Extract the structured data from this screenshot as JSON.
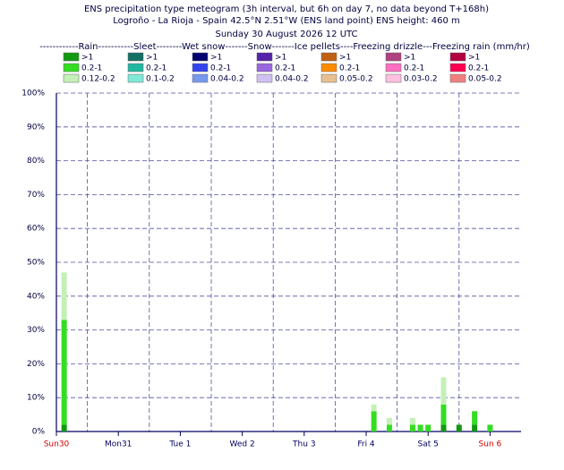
{
  "chart_data": {
    "type": "stacked-bar",
    "title": "ENS precipitation type meteogram (3h interval, but 6h on day 7, no data beyond T+168h)",
    "subtitle": "Logroño - La Rioja - Spain 42.5°N 2.51°W (ENS land point) ENS height: 460 m",
    "date_line": "Sunday 30 August 2026 12 UTC",
    "legend_header": "------------Rain-----------Sleet--------Wet snow-------Snow-------Ice pellets----Freezing drizzle---Freezing rain (mm/hr)",
    "x": [
      3,
      123,
      129,
      138,
      141,
      144,
      150,
      156,
      162,
      168
    ],
    "series": [
      {
        "name": ">1",
        "color": "#119911",
        "values": [
          2,
          null,
          null,
          null,
          null,
          null,
          2,
          2,
          2,
          null
        ]
      },
      {
        "name": "0.2-1",
        "color": "#33dd22",
        "values": [
          31,
          6,
          2,
          2,
          2,
          2,
          6,
          null,
          4,
          2
        ]
      },
      {
        "name": "0.12-0.2",
        "color": "#c4f0b8",
        "values": [
          14,
          2,
          2,
          2,
          null,
          null,
          8,
          null,
          null,
          null
        ]
      }
    ],
    "other_types": [
      [
        {
          "name": ">1",
          "color": "#137066"
        },
        {
          "name": "0.2-1",
          "color": "#22b8a0"
        },
        {
          "name": "0.1-0.2",
          "color": "#80e8d8"
        }
      ],
      [
        {
          "name": ">1",
          "color": "#000070"
        },
        {
          "name": "0.2-1",
          "color": "#3344ee"
        },
        {
          "name": "0.04-0.2",
          "color": "#7799ee"
        }
      ],
      [
        {
          "name": ">1",
          "color": "#5522aa"
        },
        {
          "name": "0.2-1",
          "color": "#9966dd"
        },
        {
          "name": "0.04-0.2",
          "color": "#d0c0f0"
        }
      ],
      [
        {
          "name": ">1",
          "color": "#c06010"
        },
        {
          "name": "0.2-1",
          "color": "#ff8c00"
        },
        {
          "name": "0.05-0.2",
          "color": "#e8c090"
        }
      ],
      [
        {
          "name": ">1",
          "color": "#b04080"
        },
        {
          "name": "0.2-1",
          "color": "#ff70c0"
        },
        {
          "name": "0.03-0.2",
          "color": "#ffc0e0"
        }
      ],
      [
        {
          "name": ">1",
          "color": "#b00040"
        },
        {
          "name": "0.2-1",
          "color": "#ff0050"
        },
        {
          "name": "0.05-0.2",
          "color": "#f08080"
        }
      ]
    ],
    "xlim": [
      0,
      180
    ],
    "xticks": [
      {
        "value": 0,
        "label": "Sun30"
      },
      {
        "value": 24,
        "label": "Mon31"
      },
      {
        "value": 48,
        "label": "Tue 1"
      },
      {
        "value": 72,
        "label": "Wed 2"
      },
      {
        "value": 96,
        "label": "Thu 3"
      },
      {
        "value": 120,
        "label": "Fri 4"
      },
      {
        "value": 144,
        "label": "Sat 5"
      },
      {
        "value": 168,
        "label": "Sun 6"
      }
    ],
    "xtick_colors": [
      "#cc0000",
      "#000060",
      "#000060",
      "#000060",
      "#000060",
      "#000060",
      "#000060",
      "#cc0000"
    ],
    "x_grid": [
      12,
      36,
      60,
      84,
      108,
      132,
      156
    ],
    "ylim": [
      0,
      100
    ],
    "yticks": [
      {
        "value": 0,
        "label": "0%"
      },
      {
        "value": 10,
        "label": "10%"
      },
      {
        "value": 20,
        "label": "20%"
      },
      {
        "value": 30,
        "label": "30%"
      },
      {
        "value": 40,
        "label": "40%"
      },
      {
        "value": 50,
        "label": "50%"
      },
      {
        "value": 60,
        "label": "60%"
      },
      {
        "value": 70,
        "label": "70%"
      },
      {
        "value": 80,
        "label": "80%"
      },
      {
        "value": 90,
        "label": "90%"
      },
      {
        "value": 100,
        "label": "100%"
      }
    ],
    "grid": true
  }
}
